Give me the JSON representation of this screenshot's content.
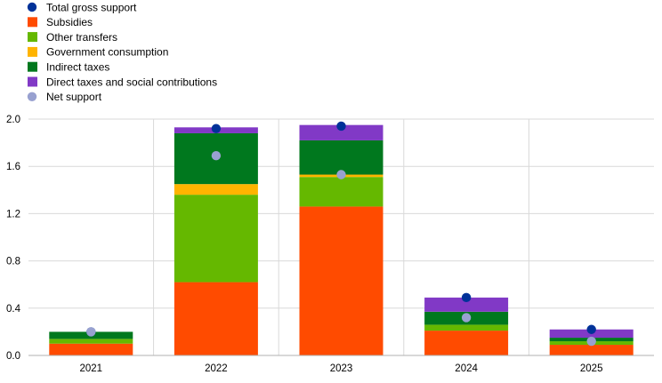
{
  "chart_data": {
    "type": "bar",
    "stacked": true,
    "title": "",
    "xlabel": "",
    "ylabel": "",
    "categories": [
      "2021",
      "2022",
      "2023",
      "2024",
      "2025"
    ],
    "ylim": [
      0,
      2.0
    ],
    "yticks": [
      "0.0",
      "0.4",
      "0.8",
      "1.2",
      "1.6",
      "2.0"
    ],
    "grid": true,
    "legend_position": "top-left",
    "series": [
      {
        "name": "Subsidies",
        "kind": "bar",
        "color": "#ff4b00",
        "values": [
          0.1,
          0.62,
          1.26,
          0.21,
          0.09
        ]
      },
      {
        "name": "Other transfers",
        "kind": "bar",
        "color": "#65b800",
        "values": [
          0.04,
          0.74,
          0.25,
          0.05,
          0.03
        ]
      },
      {
        "name": "Government consumption",
        "kind": "bar",
        "color": "#ffb400",
        "values": [
          0.0,
          0.09,
          0.02,
          0.0,
          0.0
        ]
      },
      {
        "name": "Indirect taxes",
        "kind": "bar",
        "color": "#00781e",
        "values": [
          0.06,
          0.43,
          0.29,
          0.11,
          0.03
        ]
      },
      {
        "name": "Direct taxes and social contributions",
        "kind": "bar",
        "color": "#8139c6",
        "values": [
          0.0,
          0.05,
          0.13,
          0.12,
          0.07
        ]
      }
    ],
    "markers": [
      {
        "name": "Total gross support",
        "kind": "point",
        "color": "#003299",
        "values": [
          0.2,
          1.92,
          1.94,
          0.49,
          0.22
        ]
      },
      {
        "name": "Net support",
        "kind": "point",
        "color": "#98a1d0",
        "values": [
          0.2,
          1.69,
          1.53,
          0.32,
          0.12
        ]
      }
    ],
    "legend": [
      {
        "label": "Total gross support",
        "shape": "circle",
        "color": "#003299"
      },
      {
        "label": "Subsidies",
        "shape": "square",
        "color": "#ff4b00"
      },
      {
        "label": "Other transfers",
        "shape": "square",
        "color": "#65b800"
      },
      {
        "label": "Government consumption",
        "shape": "square",
        "color": "#ffb400"
      },
      {
        "label": "Indirect taxes",
        "shape": "square",
        "color": "#00781e"
      },
      {
        "label": "Direct taxes and social contributions",
        "shape": "square",
        "color": "#8139c6"
      },
      {
        "label": "Net support",
        "shape": "circle",
        "color": "#98a1d0"
      }
    ],
    "grid_color": "#d9d9d9",
    "axis_color": "#b0b0b0"
  }
}
